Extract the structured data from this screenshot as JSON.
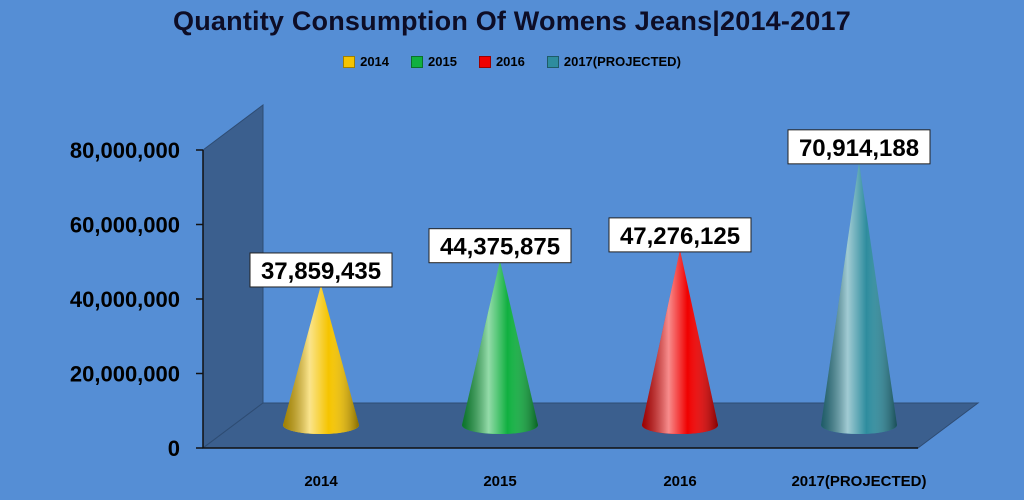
{
  "chart_data": {
    "type": "bar",
    "title": "Quantity Consumption Of Womens Jeans|2014-2017",
    "categories": [
      "2014",
      "2015",
      "2016",
      "2017(PROJECTED)"
    ],
    "values": [
      37859435,
      44375875,
      47276125,
      70914188
    ],
    "data_labels": [
      "37,859,435",
      "44,375,875",
      "47,276,125",
      "70,914,188"
    ],
    "colors": [
      "#F5C400",
      "#10B040",
      "#F00000",
      "#2E8C9E"
    ],
    "legend": {
      "position": "top",
      "entries": [
        "2014",
        "2015",
        "2016",
        "2017(PROJECTED)"
      ]
    },
    "yticks": [
      "0",
      "20,000,000",
      "40,000,000",
      "60,000,000",
      "80,000,000"
    ],
    "ylim": [
      0,
      80000000
    ],
    "xlabel": "",
    "ylabel": "",
    "grid": false
  }
}
